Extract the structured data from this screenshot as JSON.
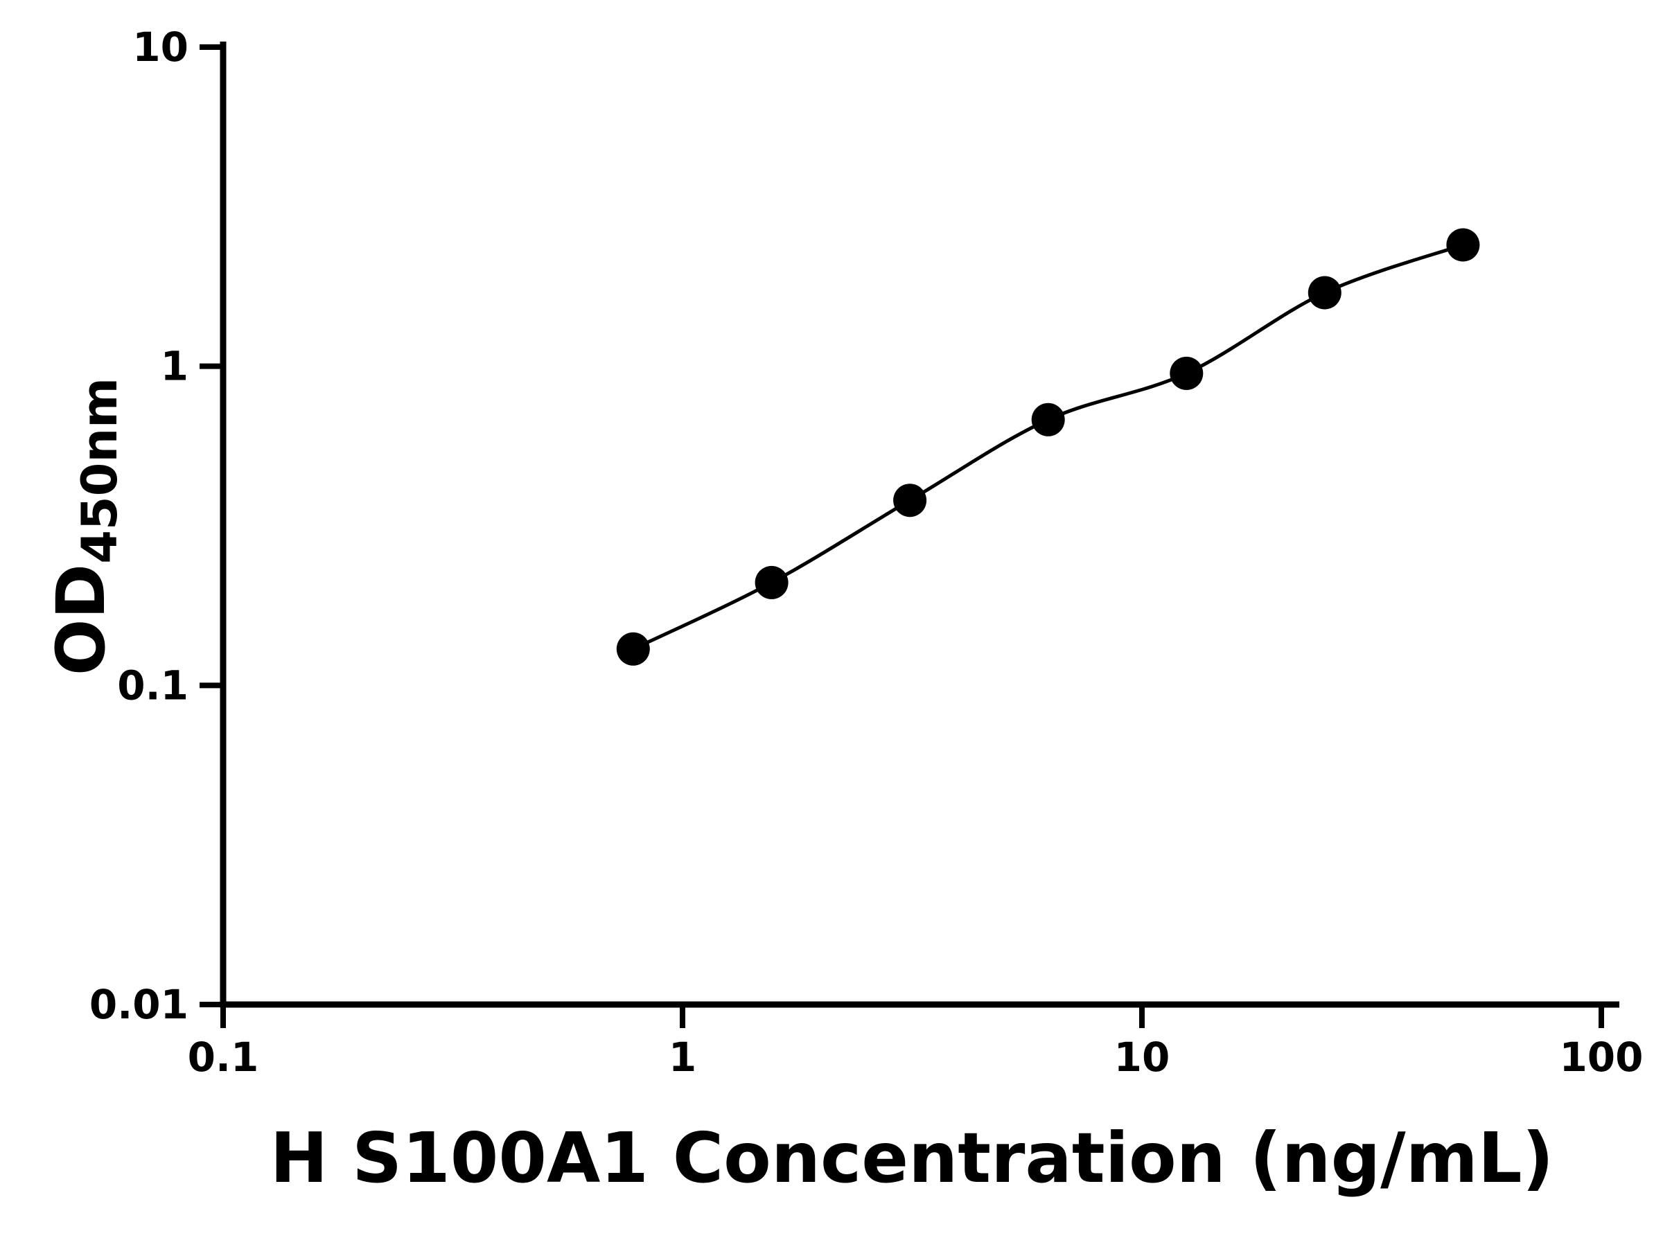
{
  "figure": {
    "background": "#ffffff",
    "foreground": "#000000"
  },
  "chart_data": {
    "type": "scatter",
    "title": "",
    "xlabel": "H S100A1 Concentration (ng/mL)",
    "ylabel_main": "OD",
    "ylabel_sub": "450nm",
    "x_scale": "log",
    "y_scale": "log",
    "xlim": [
      0.1,
      100
    ],
    "ylim": [
      0.01,
      10
    ],
    "x_tick_labels": [
      "0.1",
      "1",
      "10",
      "100"
    ],
    "y_tick_labels": [
      "0.01",
      "0.1",
      "1",
      "10"
    ],
    "grid": false,
    "legend": false,
    "marker": {
      "shape": "circle",
      "color": "#000000",
      "radius": 24
    },
    "line": {
      "color": "#000000",
      "width": 5
    },
    "series": [
      {
        "points": [
          {
            "x": 0.781,
            "y": 0.13
          },
          {
            "x": 1.563,
            "y": 0.21
          },
          {
            "x": 3.125,
            "y": 0.38
          },
          {
            "x": 6.25,
            "y": 0.68
          },
          {
            "x": 12.5,
            "y": 0.95
          },
          {
            "x": 25,
            "y": 1.7
          },
          {
            "x": 50,
            "y": 2.4
          }
        ]
      }
    ]
  }
}
